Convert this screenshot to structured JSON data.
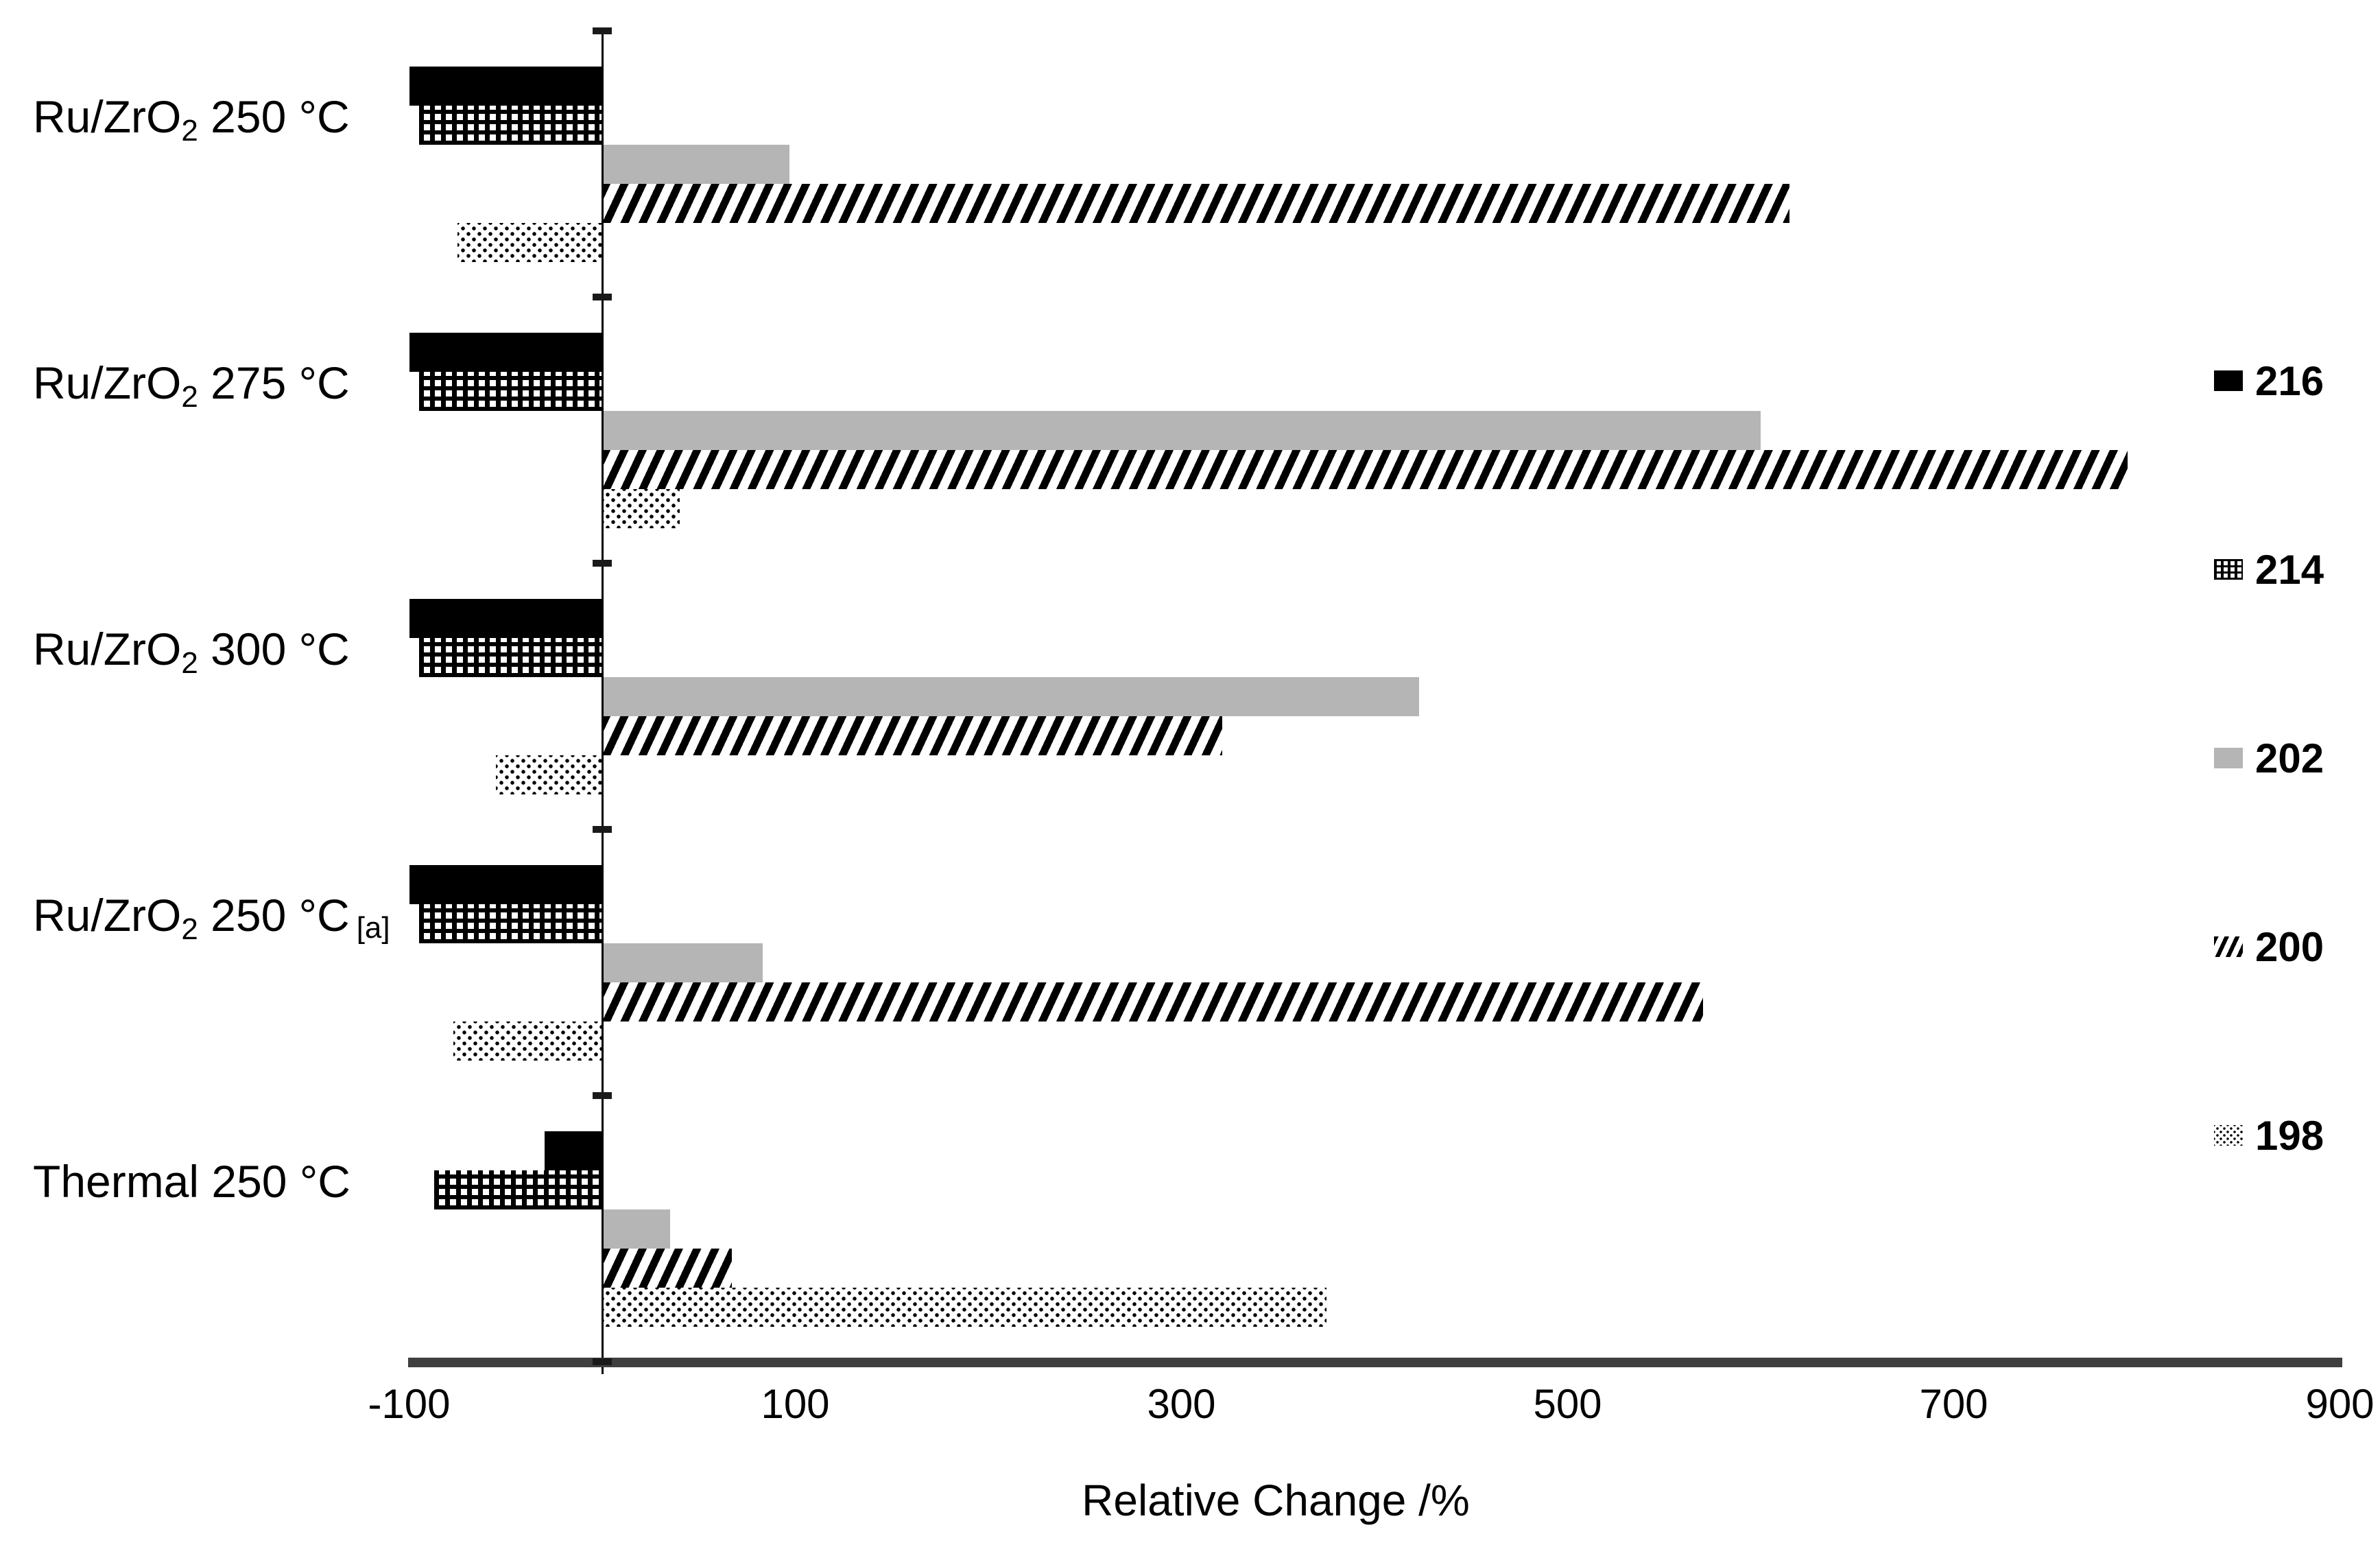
{
  "chart_data": {
    "type": "bar",
    "orientation": "horizontal",
    "title": "",
    "xlabel": "Relative Change /%",
    "xlim": [
      -100,
      900
    ],
    "grid": false,
    "legend_position": "right",
    "x_ticks": [
      {
        "v": -100,
        "label": "-100"
      },
      {
        "v": 100,
        "label": "100"
      },
      {
        "v": 300,
        "label": "300"
      },
      {
        "v": 500,
        "label": "500"
      },
      {
        "v": 700,
        "label": "700"
      },
      {
        "v": 900,
        "label": "900"
      }
    ],
    "categories": [
      {
        "main": "Ru/ZrO",
        "sub": "2",
        "rest": " 250 °C",
        "note": ""
      },
      {
        "main": "Ru/ZrO",
        "sub": "2",
        "rest": " 275 °C",
        "note": ""
      },
      {
        "main": "Ru/ZrO",
        "sub": "2",
        "rest": " 300 °C",
        "note": ""
      },
      {
        "main": "Ru/ZrO",
        "sub": "2",
        "rest": " 250 °C",
        "note": "[a]"
      },
      {
        "main": "Thermal 250 °C",
        "sub": "",
        "rest": "",
        "note": ""
      }
    ],
    "series": [
      {
        "name": "216",
        "pattern": "solid-black",
        "values": [
          -100,
          -100,
          -100,
          -100,
          -30
        ]
      },
      {
        "name": "214",
        "pattern": "grid",
        "values": [
          -95,
          -95,
          -95,
          -95,
          -87
        ]
      },
      {
        "name": "202",
        "pattern": "solid-gray",
        "values": [
          97,
          600,
          423,
          83,
          35
        ]
      },
      {
        "name": "200",
        "pattern": "diagonal",
        "values": [
          615,
          790,
          321,
          570,
          67
        ]
      },
      {
        "name": "198",
        "pattern": "dots",
        "values": [
          -75,
          40,
          -55,
          -77,
          375
        ]
      }
    ],
    "colors": {
      "bar_black": "#000000",
      "bar_gray": "#b5b5b5",
      "axis_line": "#3f3f3f"
    }
  }
}
